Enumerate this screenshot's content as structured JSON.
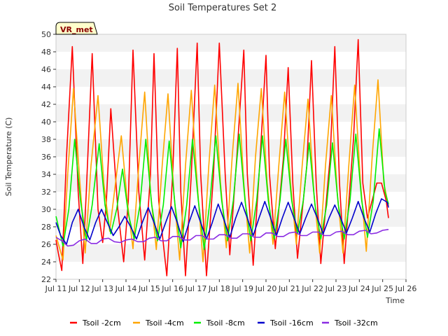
{
  "chart_data": {
    "type": "line",
    "title": "Soil Temperatures Set 2",
    "xlabel": "Time",
    "ylabel": "Soil Temperature (C)",
    "ylim": [
      22,
      50
    ],
    "xlim": [
      11,
      26
    ],
    "yticks": [
      22,
      24,
      26,
      28,
      30,
      32,
      34,
      36,
      38,
      40,
      42,
      44,
      46,
      48,
      50
    ],
    "xticks": [
      11,
      12,
      13,
      14,
      15,
      16,
      17,
      18,
      19,
      20,
      21,
      22,
      23,
      24,
      25,
      26
    ],
    "xtick_labels": [
      "Jul 11",
      "Jul 12",
      "Jul 13",
      "Jul 14",
      "Jul 15",
      "Jul 16",
      "Jul 17",
      "Jul 18",
      "Jul 19",
      "Jul 20",
      "Jul 21",
      "Jul 22",
      "Jul 23",
      "Jul 24",
      "Jul 25",
      "Jul 26"
    ],
    "grid": "horizontal bands",
    "legend_position": "bottom",
    "badge": "VR_met",
    "series": [
      {
        "name": "Tsoil -2cm",
        "color": "#ff0000",
        "x": [
          11.0,
          11.1,
          11.25,
          11.45,
          11.7,
          11.95,
          12.15,
          12.3,
          12.55,
          12.8,
          13.0,
          13.15,
          13.35,
          13.65,
          13.9,
          14.1,
          14.3,
          14.55,
          14.8,
          15.05,
          15.2,
          15.4,
          15.75,
          16.0,
          16.2,
          16.35,
          16.55,
          16.8,
          17.05,
          17.2,
          17.45,
          17.75,
          18.0,
          18.25,
          18.45,
          18.75,
          19.05,
          19.2,
          19.45,
          19.75,
          20.0,
          20.15,
          20.4,
          20.75,
          20.95,
          21.15,
          21.35,
          21.75,
          21.95,
          22.15,
          22.35,
          22.75,
          22.95,
          23.15,
          23.35,
          23.75,
          23.95,
          24.15,
          24.35,
          24.75,
          24.95,
          25.15,
          25.25
        ],
        "values": [
          26.5,
          25.0,
          23.0,
          36.0,
          48.6,
          32.0,
          23.8,
          32.0,
          47.8,
          30.0,
          26.2,
          30.5,
          41.5,
          30.0,
          24.0,
          31.0,
          48.2,
          32.0,
          24.2,
          34.0,
          47.8,
          31.0,
          22.4,
          34.0,
          48.4,
          32.0,
          22.4,
          34.0,
          49.0,
          34.0,
          22.4,
          34.0,
          49.0,
          34.0,
          24.8,
          36.0,
          48.2,
          34.0,
          23.6,
          36.0,
          47.6,
          34.0,
          25.5,
          36.0,
          46.2,
          33.0,
          24.4,
          35.0,
          47.0,
          33.0,
          23.8,
          36.0,
          48.6,
          33.0,
          23.8,
          38.0,
          49.4,
          33.0,
          29.0,
          33.0,
          33.0,
          31.0,
          29.0
        ]
      },
      {
        "name": "Tsoil -4cm",
        "color": "#ffa500",
        "x": [
          11.0,
          11.3,
          11.5,
          11.75,
          12.0,
          12.25,
          12.5,
          12.8,
          13.05,
          13.3,
          13.55,
          13.8,
          14.05,
          14.3,
          14.55,
          14.8,
          15.05,
          15.3,
          15.55,
          15.8,
          16.05,
          16.3,
          16.55,
          16.8,
          17.05,
          17.3,
          17.55,
          17.8,
          18.05,
          18.3,
          18.55,
          18.8,
          19.05,
          19.3,
          19.55,
          19.8,
          20.05,
          20.3,
          20.55,
          20.8,
          21.05,
          21.3,
          21.55,
          21.8,
          22.05,
          22.3,
          22.55,
          22.8,
          23.05,
          23.3,
          23.55,
          23.8,
          24.05,
          24.3,
          24.55,
          24.8,
          25.05,
          25.25
        ],
        "values": [
          27.0,
          24.2,
          34.0,
          43.8,
          34.0,
          25.0,
          35.0,
          43.0,
          33.0,
          27.5,
          33.0,
          38.4,
          31.0,
          25.5,
          35.0,
          43.4,
          32.0,
          25.4,
          35.0,
          43.2,
          32.0,
          24.2,
          35.0,
          43.6,
          33.0,
          24.0,
          35.0,
          44.2,
          33.0,
          25.6,
          36.0,
          44.4,
          33.0,
          25.0,
          36.0,
          43.8,
          33.0,
          26.0,
          35.0,
          43.4,
          33.0,
          26.0,
          35.0,
          42.6,
          32.0,
          25.0,
          35.0,
          43.0,
          32.0,
          25.0,
          35.0,
          44.2,
          33.0,
          25.2,
          36.0,
          44.8,
          33.0,
          30.4
        ]
      },
      {
        "name": "Tsoil -8cm",
        "color": "#00ee00",
        "x": [
          11.0,
          11.3,
          11.55,
          11.8,
          12.05,
          12.3,
          12.55,
          12.85,
          13.1,
          13.35,
          13.6,
          13.85,
          14.1,
          14.35,
          14.6,
          14.85,
          15.1,
          15.35,
          15.6,
          15.85,
          16.1,
          16.35,
          16.6,
          16.85,
          17.1,
          17.35,
          17.6,
          17.85,
          18.1,
          18.35,
          18.6,
          18.85,
          19.1,
          19.35,
          19.6,
          19.85,
          20.1,
          20.35,
          20.6,
          20.85,
          21.1,
          21.35,
          21.6,
          21.85,
          22.1,
          22.35,
          22.6,
          22.85,
          23.1,
          23.35,
          23.6,
          23.85,
          24.1,
          24.35,
          24.6,
          24.85,
          25.1,
          25.25
        ],
        "values": [
          29.2,
          25.8,
          30.0,
          38.0,
          31.0,
          26.4,
          30.5,
          37.5,
          30.5,
          27.2,
          30.0,
          34.6,
          29.5,
          26.6,
          30.5,
          38.0,
          30.5,
          26.4,
          30.5,
          37.8,
          30.5,
          25.6,
          30.5,
          38.0,
          31.0,
          25.4,
          31.0,
          38.4,
          31.0,
          26.4,
          31.0,
          38.6,
          31.0,
          26.4,
          31.0,
          38.4,
          31.0,
          26.6,
          31.0,
          38.0,
          31.0,
          27.2,
          31.0,
          37.6,
          30.5,
          26.6,
          30.5,
          37.6,
          30.5,
          26.6,
          31.0,
          38.6,
          31.0,
          26.8,
          31.0,
          39.2,
          32.0,
          30.6
        ]
      },
      {
        "name": "Tsoil -16cm",
        "color": "#0000cc",
        "x": [
          11.0,
          11.2,
          11.45,
          11.7,
          11.95,
          12.2,
          12.45,
          12.7,
          12.95,
          13.2,
          13.45,
          13.7,
          13.95,
          14.2,
          14.45,
          14.7,
          14.95,
          15.2,
          15.45,
          15.7,
          15.95,
          16.2,
          16.45,
          16.7,
          16.95,
          17.2,
          17.45,
          17.7,
          17.95,
          18.2,
          18.45,
          18.7,
          18.95,
          19.2,
          19.45,
          19.7,
          19.95,
          20.2,
          20.45,
          20.7,
          20.95,
          21.2,
          21.45,
          21.7,
          21.95,
          22.2,
          22.45,
          22.7,
          22.95,
          23.2,
          23.45,
          23.7,
          23.95,
          24.2,
          24.45,
          24.7,
          24.95,
          25.2,
          25.25
        ],
        "values": [
          28.5,
          27.0,
          26.0,
          28.5,
          30.0,
          28.0,
          26.5,
          28.5,
          30.0,
          28.5,
          27.0,
          28.0,
          29.2,
          28.0,
          26.6,
          28.5,
          30.2,
          28.5,
          26.6,
          28.5,
          30.3,
          28.5,
          26.3,
          28.5,
          30.4,
          28.5,
          26.6,
          28.5,
          30.6,
          28.8,
          26.8,
          29.0,
          30.8,
          29.0,
          27.0,
          29.0,
          30.9,
          29.0,
          27.0,
          29.0,
          30.8,
          29.0,
          27.2,
          29.0,
          30.6,
          29.0,
          27.2,
          29.0,
          30.5,
          29.0,
          27.3,
          29.0,
          30.9,
          29.0,
          27.4,
          29.5,
          31.2,
          30.8,
          30.2
        ]
      },
      {
        "name": "Tsoil -32cm",
        "color": "#8a2be2",
        "x": [
          11.0,
          11.25,
          11.5,
          11.75,
          12.0,
          12.25,
          12.5,
          12.75,
          13.0,
          13.25,
          13.5,
          13.75,
          14.0,
          14.25,
          14.5,
          14.75,
          15.0,
          15.25,
          15.5,
          15.75,
          16.0,
          16.25,
          16.5,
          16.75,
          17.0,
          17.25,
          17.5,
          17.75,
          18.0,
          18.25,
          18.5,
          18.75,
          19.0,
          19.25,
          19.5,
          19.75,
          20.0,
          20.25,
          20.5,
          20.75,
          21.0,
          21.25,
          21.5,
          21.75,
          22.0,
          22.25,
          22.5,
          22.75,
          23.0,
          23.25,
          23.5,
          23.75,
          24.0,
          24.25,
          24.5,
          24.75,
          25.0,
          25.25
        ],
        "values": [
          26.8,
          26.4,
          25.8,
          25.9,
          26.4,
          26.6,
          26.1,
          26.1,
          26.6,
          26.7,
          26.3,
          26.2,
          26.5,
          26.6,
          26.3,
          26.3,
          26.7,
          26.8,
          26.4,
          26.4,
          26.9,
          26.9,
          26.5,
          26.5,
          27.0,
          27.0,
          26.6,
          26.6,
          27.1,
          27.1,
          26.7,
          26.7,
          27.2,
          27.2,
          26.8,
          26.8,
          27.3,
          27.3,
          26.9,
          26.9,
          27.3,
          27.4,
          27.0,
          27.0,
          27.4,
          27.4,
          27.0,
          27.0,
          27.4,
          27.5,
          27.1,
          27.1,
          27.5,
          27.6,
          27.2,
          27.3,
          27.6,
          27.7
        ]
      }
    ]
  }
}
